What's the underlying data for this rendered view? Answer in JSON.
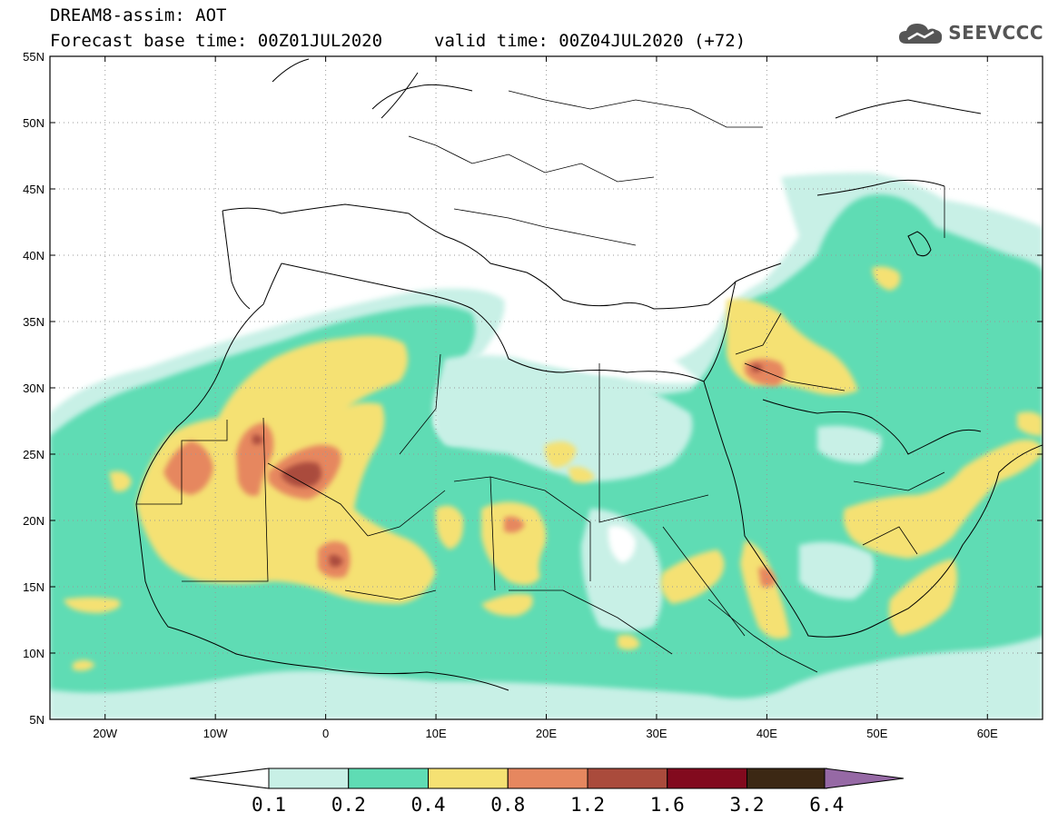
{
  "header": {
    "title": "DREAM8-assim: AOT",
    "base_time": "Forecast base time: 00Z01JUL2020",
    "valid_time": "valid time: 00Z04JUL2020 (+72)"
  },
  "logo": {
    "text": "SEEVCCC",
    "icon": "cloud-icon"
  },
  "map": {
    "lon_range": [
      -25,
      65
    ],
    "lat_range": [
      5,
      55
    ],
    "grid": "dotted",
    "lat_ticks": [
      "55N",
      "50N",
      "45N",
      "40N",
      "35N",
      "30N",
      "25N",
      "20N",
      "15N",
      "10N",
      "5N"
    ],
    "lon_ticks": [
      "20W",
      "10W",
      "0",
      "10E",
      "20E",
      "30E",
      "40E",
      "50E",
      "60E"
    ]
  },
  "colorbar": {
    "labels": [
      "0.1",
      "0.2",
      "0.4",
      "0.8",
      "1.2",
      "1.6",
      "3.2",
      "6.4"
    ],
    "colors": [
      "#ffffff",
      "#c8f0e6",
      "#5fdcb4",
      "#f5e173",
      "#e6875f",
      "#aa4b3c",
      "#820a1e",
      "#3c2814",
      "#9669a5"
    ]
  }
}
